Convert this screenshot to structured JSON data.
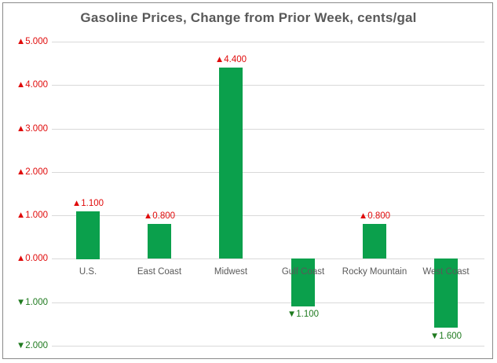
{
  "title": "Gasoline Prices, Change from Prior Week, cents/gal",
  "chart_data": {
    "type": "bar",
    "title": "Gasoline Prices, Change from Prior Week, cents/gal",
    "categories": [
      "U.S.",
      "East Coast",
      "Midwest",
      "Gulf Coast",
      "Rocky Mountain",
      "West Coast"
    ],
    "values": [
      1.1,
      0.8,
      4.4,
      -1.1,
      0.8,
      -1.6
    ],
    "bar_labels": [
      "▲1.100",
      "▲0.800",
      "▲4.400",
      "▼1.100",
      "▲0.800",
      "▼1.600"
    ],
    "y_ticks": [
      {
        "value": 5,
        "label": "▲5.000"
      },
      {
        "value": 4,
        "label": "▲4.000"
      },
      {
        "value": 3,
        "label": "▲3.000"
      },
      {
        "value": 2,
        "label": "▲2.000"
      },
      {
        "value": 1,
        "label": "▲1.000"
      },
      {
        "value": 0,
        "label": "▲0.000"
      },
      {
        "value": -1,
        "label": "▼1.000"
      },
      {
        "value": -2,
        "label": "▼2.000"
      }
    ],
    "ylim": [
      -2,
      5
    ],
    "xlabel": "",
    "ylabel": "",
    "grid": true,
    "legend": false,
    "colors": {
      "bar_fill": "#0ba04c",
      "increase_label": "#e00b0b",
      "decrease_label": "#1f7a1f",
      "axis_text": "#595959",
      "gridline": "#d9d9d9",
      "frame_border": "#8a8a8a",
      "background": "#ffffff"
    }
  }
}
